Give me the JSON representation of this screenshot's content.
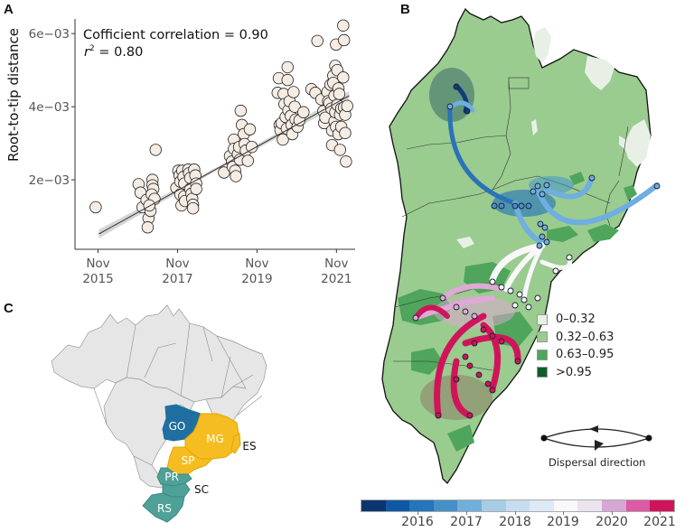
{
  "panels": {
    "a_label": "A",
    "b_label": "B",
    "c_label": "C"
  },
  "chart_data": [
    {
      "type": "scatter",
      "panel": "A",
      "title": "",
      "xlabel": "",
      "ylabel": "Root-to-tip distance",
      "annotation_line1": "Cofficient correlation = 0.90",
      "annotation_r2_symbol": "r",
      "annotation_r2_exp": "2",
      "annotation_r2_value": " = 0.80",
      "correlation": 0.9,
      "r_squared": 0.8,
      "x_ticks": [
        {
          "value": 2015.83,
          "label1": "Nov",
          "label2": "2015"
        },
        {
          "value": 2017.83,
          "label1": "Nov",
          "label2": "2017"
        },
        {
          "value": 2019.83,
          "label1": "Nov",
          "label2": "2019"
        },
        {
          "value": 2021.83,
          "label1": "Nov",
          "label2": "2021"
        }
      ],
      "y_ticks": [
        {
          "value": 0.002,
          "label": "2e−03"
        },
        {
          "value": 0.004,
          "label": "4e−03"
        },
        {
          "value": 0.006,
          "label": "6e−03"
        }
      ],
      "xlim": [
        2015.25,
        2022.3
      ],
      "ylim": [
        0.0001,
        0.0064
      ],
      "regression": {
        "x0": 2015.85,
        "y0": 0.00052,
        "x1": 2022.15,
        "y1": 0.0043
      },
      "points": [
        [
          2015.77,
          0.00125
        ],
        [
          2016.85,
          0.00188
        ],
        [
          2016.9,
          0.00165
        ],
        [
          2016.95,
          0.00125
        ],
        [
          2017.05,
          0.00145
        ],
        [
          2017.1,
          0.00095
        ],
        [
          2017.08,
          0.0007
        ],
        [
          2017.15,
          0.00115
        ],
        [
          2017.2,
          0.002
        ],
        [
          2017.2,
          0.00185
        ],
        [
          2017.22,
          0.00175
        ],
        [
          2017.18,
          0.0016
        ],
        [
          2017.25,
          0.00148
        ],
        [
          2017.28,
          0.00282
        ],
        [
          2017.12,
          0.0013
        ],
        [
          2017.8,
          0.00178
        ],
        [
          2017.85,
          0.00225
        ],
        [
          2017.88,
          0.00212
        ],
        [
          2017.9,
          0.00195
        ],
        [
          2017.9,
          0.0016
        ],
        [
          2017.93,
          0.0013
        ],
        [
          2017.95,
          0.00225
        ],
        [
          2017.98,
          0.00208
        ],
        [
          2018.0,
          0.0019
        ],
        [
          2018.0,
          0.00155
        ],
        [
          2018.02,
          0.00142
        ],
        [
          2018.1,
          0.00228
        ],
        [
          2018.12,
          0.00218
        ],
        [
          2018.15,
          0.00205
        ],
        [
          2018.15,
          0.00175
        ],
        [
          2018.18,
          0.00162
        ],
        [
          2018.2,
          0.00148
        ],
        [
          2018.22,
          0.00132
        ],
        [
          2018.22,
          0.00122
        ],
        [
          2018.25,
          0.00228
        ],
        [
          2018.28,
          0.00212
        ],
        [
          2018.3,
          0.0019
        ],
        [
          2018.3,
          0.00175
        ],
        [
          2019.0,
          0.0022
        ],
        [
          2019.15,
          0.00265
        ],
        [
          2019.2,
          0.0025
        ],
        [
          2019.22,
          0.00235
        ],
        [
          2019.25,
          0.0031
        ],
        [
          2019.25,
          0.00285
        ],
        [
          2019.28,
          0.00225
        ],
        [
          2019.3,
          0.0021
        ],
        [
          2019.35,
          0.0027
        ],
        [
          2019.38,
          0.0029
        ],
        [
          2019.4,
          0.00255
        ],
        [
          2019.42,
          0.00389
        ],
        [
          2019.45,
          0.0035
        ],
        [
          2019.5,
          0.00325
        ],
        [
          2019.52,
          0.00298
        ],
        [
          2019.55,
          0.0028
        ],
        [
          2019.6,
          0.00252
        ],
        [
          2019.65,
          0.00338
        ],
        [
          2019.7,
          0.0029
        ],
        [
          2020.35,
          0.00438
        ],
        [
          2020.38,
          0.00478
        ],
        [
          2020.4,
          0.0035
        ],
        [
          2020.42,
          0.00336
        ],
        [
          2020.45,
          0.00355
        ],
        [
          2020.48,
          0.0031
        ],
        [
          2020.5,
          0.00435
        ],
        [
          2020.52,
          0.00407
        ],
        [
          2020.55,
          0.00372
        ],
        [
          2020.58,
          0.0034
        ],
        [
          2020.6,
          0.00508
        ],
        [
          2020.6,
          0.00473
        ],
        [
          2020.62,
          0.0039
        ],
        [
          2020.65,
          0.00415
        ],
        [
          2020.68,
          0.00375
        ],
        [
          2020.7,
          0.0035
        ],
        [
          2020.72,
          0.00325
        ],
        [
          2020.75,
          0.0044
        ],
        [
          2020.78,
          0.004
        ],
        [
          2020.8,
          0.00365
        ],
        [
          2020.85,
          0.00345
        ],
        [
          2020.9,
          0.00363
        ],
        [
          2021.0,
          0.00385
        ],
        [
          2021.2,
          0.00448
        ],
        [
          2021.3,
          0.00438
        ],
        [
          2021.35,
          0.0058
        ],
        [
          2021.45,
          0.0042
        ],
        [
          2021.5,
          0.00388
        ],
        [
          2021.52,
          0.00355
        ],
        [
          2021.55,
          0.0037
        ],
        [
          2021.6,
          0.0044
        ],
        [
          2021.62,
          0.00415
        ],
        [
          2021.65,
          0.0041
        ],
        [
          2021.68,
          0.0046
        ],
        [
          2021.7,
          0.00395
        ],
        [
          2021.72,
          0.00335
        ],
        [
          2021.72,
          0.00295
        ],
        [
          2021.75,
          0.00485
        ],
        [
          2021.75,
          0.00465
        ],
        [
          2021.78,
          0.0043
        ],
        [
          2021.78,
          0.0036
        ],
        [
          2021.8,
          0.00512
        ],
        [
          2021.8,
          0.00385
        ],
        [
          2021.82,
          0.0057
        ],
        [
          2021.82,
          0.00345
        ],
        [
          2021.85,
          0.005
        ],
        [
          2021.85,
          0.00405
        ],
        [
          2021.88,
          0.0045
        ],
        [
          2021.88,
          0.00325
        ],
        [
          2021.9,
          0.00435
        ],
        [
          2021.92,
          0.00378
        ],
        [
          2021.92,
          0.00282
        ],
        [
          2021.95,
          0.00395
        ],
        [
          2021.95,
          0.00345
        ],
        [
          2022.0,
          0.0048
        ],
        [
          2022.0,
          0.00622
        ],
        [
          2022.02,
          0.00582
        ],
        [
          2022.02,
          0.00398
        ],
        [
          2022.05,
          0.00378
        ],
        [
          2022.05,
          0.00328
        ],
        [
          2022.07,
          0.0025
        ],
        [
          2022.1,
          0.00402
        ]
      ]
    },
    {
      "type": "map",
      "panel": "B",
      "legend": {
        "entries": [
          {
            "label": "0–0.32",
            "color": "#e8f0e6"
          },
          {
            "label": "0.32–0.63",
            "color": "#9acb8f"
          },
          {
            "label": "0.63–0.95",
            "color": "#4ea55b"
          },
          {
            "label": ">0.95",
            "color": "#0f5c2a"
          }
        ],
        "placement": "middle-right"
      },
      "dispersal_label": "Dispersal direction",
      "colorbar": {
        "colors": [
          "#0c3570",
          "#0f58a4",
          "#2575ba",
          "#4690c9",
          "#71afdb",
          "#a6cde5",
          "#c6dcf0",
          "#dde9f5",
          "#f8f8fb",
          "#ebe4ef",
          "#d7a7d4",
          "#dd5aa5",
          "#d0145a"
        ],
        "tick_labels": [
          "2016",
          "2017",
          "2018",
          "2019",
          "2020",
          "2021"
        ]
      }
    },
    {
      "type": "map",
      "panel": "C",
      "states": [
        {
          "code": "GO",
          "color": "#1f6fa0"
        },
        {
          "code": "MG",
          "color": "#f5bd21"
        },
        {
          "code": "SP",
          "color": "#f5bd21"
        },
        {
          "code": "ES",
          "color": "#f5bd21"
        },
        {
          "code": "PR",
          "color": "#4fa198"
        },
        {
          "code": "SC",
          "color": "#4fa198"
        },
        {
          "code": "RS",
          "color": "#4fa198"
        }
      ],
      "base_color": "#e6e6e6"
    }
  ]
}
